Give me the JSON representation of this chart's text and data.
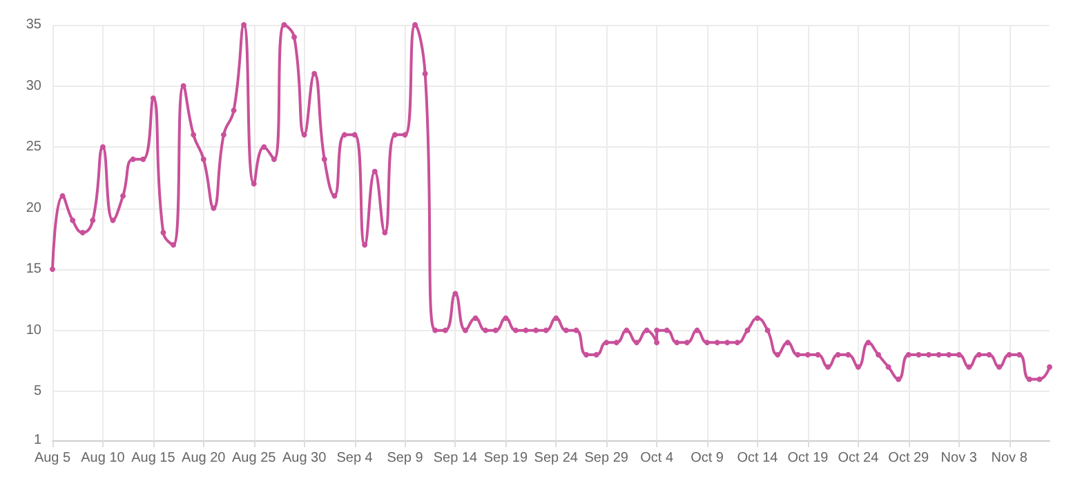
{
  "chart_data": {
    "type": "line",
    "x": [
      "--08-05",
      "--08-06",
      "--08-07",
      "--08-08",
      "--08-09",
      "--08-10",
      "--08-11",
      "--08-12",
      "--08-13",
      "--08-14",
      "--08-15",
      "--08-16",
      "--08-17",
      "--08-18",
      "--08-19",
      "--08-20",
      "--08-21",
      "--08-22",
      "--08-23",
      "--08-24",
      "--08-25",
      "--08-26",
      "--08-27",
      "--08-28",
      "--08-29",
      "--08-30",
      "--08-31",
      "--09-01",
      "--09-02",
      "--09-03",
      "--09-04",
      "--09-05",
      "--09-06",
      "--09-07",
      "--09-08",
      "--09-09",
      "--09-10",
      "--09-11",
      "--09-12",
      "--09-13",
      "--09-14",
      "--09-15",
      "--09-16",
      "--09-17",
      "--09-18",
      "--09-19",
      "--09-20",
      "--09-21",
      "--09-22",
      "--09-23",
      "--09-24",
      "--09-25",
      "--09-26",
      "--09-27",
      "--09-28",
      "--09-29",
      "--09-30",
      "--10-01",
      "--10-02",
      "--10-03",
      "--10-04",
      "--10-04",
      "--10-05",
      "--10-06",
      "--10-07",
      "--10-08",
      "--10-09",
      "--10-10",
      "--10-11",
      "--10-12",
      "--10-13",
      "--10-14",
      "--10-15",
      "--10-16",
      "--10-17",
      "--10-18",
      "--10-19",
      "--10-20",
      "--10-21",
      "--10-22",
      "--10-23",
      "--10-24",
      "--10-25",
      "--10-26",
      "--10-27",
      "--10-28",
      "--10-29",
      "--10-30",
      "--10-31",
      "--11-01",
      "--11-02",
      "--11-03",
      "--11-04",
      "--11-05",
      "--11-06",
      "--11-07",
      "--11-08",
      "--11-09",
      "--11-10",
      "--11-11",
      "--11-12"
    ],
    "series": [
      {
        "color": "#c9509a",
        "values": [
          15,
          21,
          19,
          18,
          19,
          25,
          19,
          21,
          24,
          24,
          29,
          18,
          17,
          30,
          26,
          24,
          20,
          26,
          28,
          35,
          22,
          25,
          24,
          35,
          34,
          26,
          31,
          24,
          21,
          26,
          26,
          17,
          23,
          18,
          26,
          26,
          35,
          31,
          10,
          10,
          13,
          10,
          11,
          10,
          10,
          11,
          10,
          10,
          10,
          10,
          11,
          10,
          10,
          8,
          8,
          9,
          9,
          10,
          9,
          10,
          9,
          10,
          10,
          9,
          9,
          10,
          9,
          9,
          9,
          9,
          10,
          11,
          10,
          8,
          9,
          8,
          8,
          8,
          7,
          8,
          8,
          7,
          9,
          8,
          7,
          6,
          8,
          8,
          8,
          8,
          8,
          8,
          7,
          8,
          8,
          7,
          8,
          8,
          6,
          6,
          7
        ]
      }
    ],
    "xlim": [
      "--08-05",
      "--11-12"
    ],
    "xticks": [
      {
        "value": "--08-05",
        "label": "Aug 5"
      },
      {
        "value": "--08-10",
        "label": "Aug 10"
      },
      {
        "value": "--08-15",
        "label": "Aug 15"
      },
      {
        "value": "--08-20",
        "label": "Aug 20"
      },
      {
        "value": "--08-25",
        "label": "Aug 25"
      },
      {
        "value": "--08-30",
        "label": "Aug 30"
      },
      {
        "value": "--09-04",
        "label": "Sep 4"
      },
      {
        "value": "--09-09",
        "label": "Sep 9"
      },
      {
        "value": "--09-14",
        "label": "Sep 14"
      },
      {
        "value": "--09-19",
        "label": "Sep 19"
      },
      {
        "value": "--09-24",
        "label": "Sep 24"
      },
      {
        "value": "--09-29",
        "label": "Sep 29"
      },
      {
        "value": "--10-04",
        "label": "Oct 4"
      },
      {
        "value": "--10-09",
        "label": "Oct 9"
      },
      {
        "value": "--10-14",
        "label": "Oct 14"
      },
      {
        "value": "--10-19",
        "label": "Oct 19"
      },
      {
        "value": "--10-24",
        "label": "Oct 24"
      },
      {
        "value": "--10-29",
        "label": "Oct 29"
      },
      {
        "value": "--11-03",
        "label": "Nov 3"
      },
      {
        "value": "--11-08",
        "label": "Nov 8"
      }
    ],
    "ylim": [
      1,
      35
    ],
    "yticks": [
      1,
      5,
      10,
      15,
      20,
      25,
      30,
      35
    ],
    "grid": true,
    "marker": "circle",
    "line_style": "solid"
  }
}
